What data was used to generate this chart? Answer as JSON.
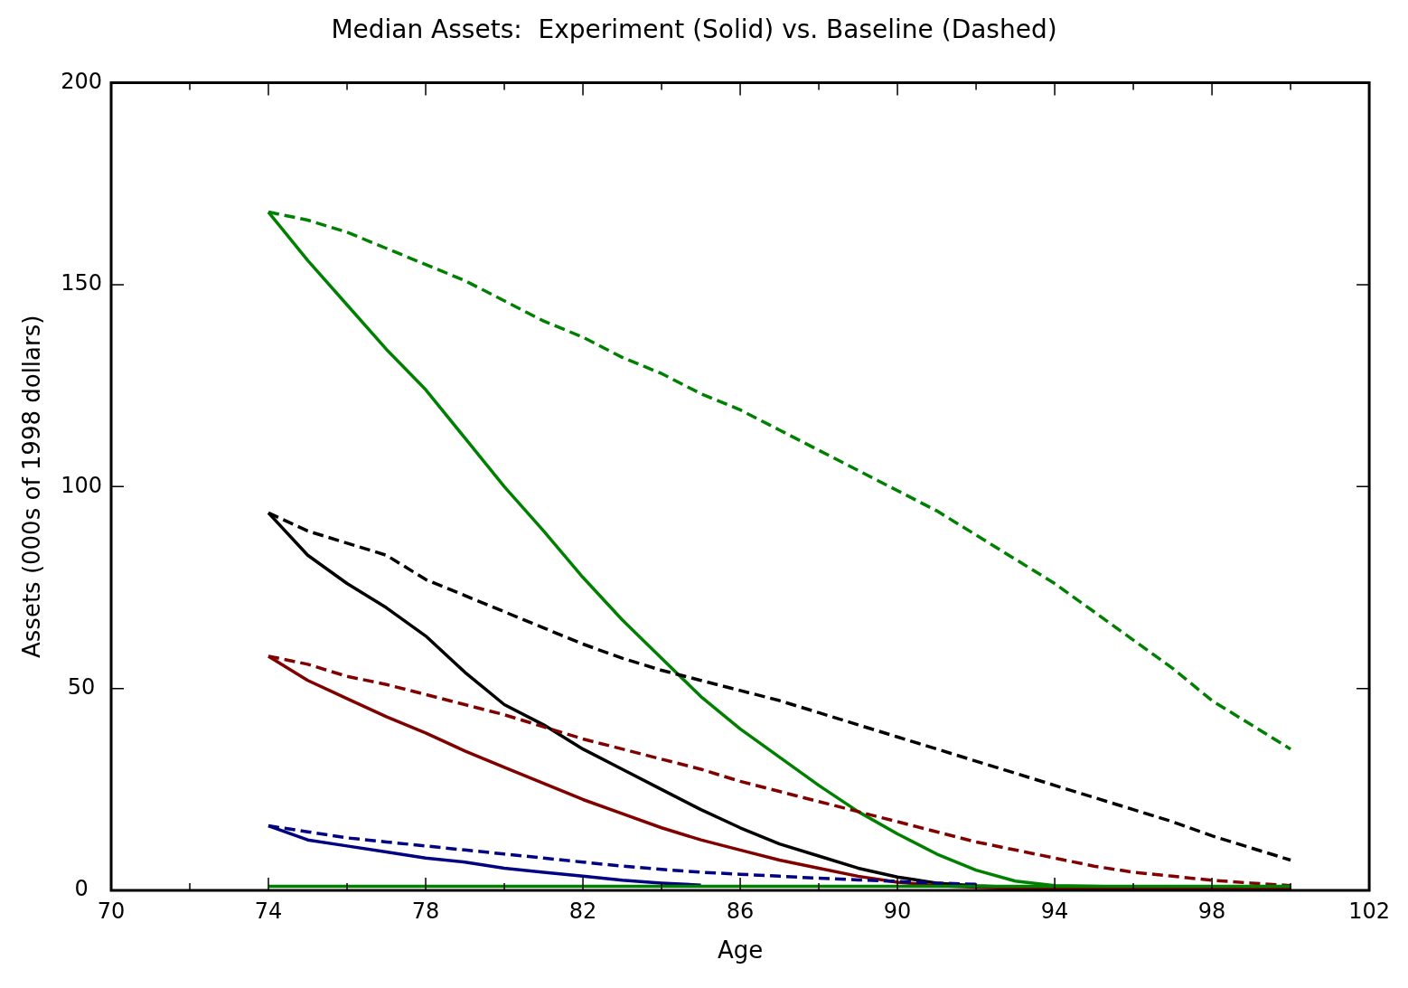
{
  "chart_data": {
    "type": "line",
    "title": "Median Assets:  Experiment (Solid) vs. Baseline (Dashed)",
    "xlabel": "Age",
    "ylabel": "Assets (000s of 1998 dollars)",
    "x": [
      74,
      75,
      76,
      77,
      78,
      79,
      80,
      81,
      82,
      83,
      84,
      85,
      86,
      87,
      88,
      89,
      90,
      91,
      92,
      93,
      94,
      95,
      96,
      97,
      98,
      99,
      100
    ],
    "series": [
      {
        "color": "#008000",
        "line_style": "dashed",
        "values": [
          168,
          166,
          163,
          159,
          155,
          151,
          146,
          141,
          137,
          132,
          128,
          123,
          119,
          114,
          109,
          104,
          99,
          94,
          88,
          82,
          76,
          69,
          62,
          55,
          47,
          41,
          35
        ]
      },
      {
        "color": "#008000",
        "line_style": "solid",
        "values": [
          168,
          156,
          145,
          134,
          124,
          112,
          100,
          89,
          77.5,
          67,
          57.5,
          48,
          40,
          33,
          26,
          19.5,
          14,
          9,
          5,
          2.3,
          1.2,
          1,
          0.8,
          0.7,
          0.6,
          0.5,
          0.5
        ]
      },
      {
        "color": "#000000",
        "line_style": "dashed",
        "values": [
          93.5,
          89,
          86,
          83,
          77,
          73,
          69,
          65,
          61,
          57.5,
          54.5,
          52,
          49.5,
          47,
          44,
          41,
          38,
          35,
          32,
          29,
          26,
          23,
          20,
          17,
          13.5,
          10.5,
          7.5
        ]
      },
      {
        "color": "#000000",
        "line_style": "solid",
        "values": [
          93.5,
          83,
          76,
          70,
          63,
          54,
          46,
          41,
          35,
          30,
          25,
          20,
          15.5,
          11.5,
          8.5,
          5.5,
          3.3,
          1.8,
          1.1,
          0.8,
          0.6,
          0.5,
          0.5,
          0.4,
          0.4,
          0.4,
          0.4
        ]
      },
      {
        "color": "#800000",
        "line_style": "dashed",
        "values": [
          58,
          56,
          53,
          51,
          48.5,
          46,
          43.5,
          40.5,
          37.5,
          35,
          32.5,
          30,
          27,
          24.5,
          22,
          19.5,
          17,
          14.5,
          12,
          10,
          8,
          6,
          4.5,
          3.5,
          2.5,
          1.8,
          1.2
        ]
      },
      {
        "color": "#800000",
        "line_style": "solid",
        "values": [
          58,
          52,
          47.5,
          43,
          39,
          34.5,
          30.5,
          26.5,
          22.5,
          19,
          15.5,
          12.5,
          10,
          7.5,
          5.5,
          3.5,
          2,
          1.2,
          0.8,
          0.5,
          0.4,
          0.3,
          0.3,
          0.3,
          0.3,
          0.3,
          0.3
        ]
      },
      {
        "color": "#000080",
        "line_style": "dashed",
        "values": [
          16,
          14.5,
          13,
          12,
          11,
          10,
          9,
          8,
          7,
          6,
          5.2,
          4.5,
          4,
          3.5,
          3,
          2.6,
          2.2,
          1.8,
          1.5,
          null,
          null,
          null,
          null,
          null,
          null,
          null,
          null
        ]
      },
      {
        "color": "#000080",
        "line_style": "solid",
        "values": [
          16,
          12.5,
          11,
          9.5,
          8,
          7,
          5.5,
          4.5,
          3.5,
          2.5,
          1.8,
          1.3,
          null,
          null,
          null,
          null,
          null,
          null,
          null,
          null,
          null,
          null,
          null,
          null,
          null,
          null,
          null
        ]
      },
      {
        "color": "#008000",
        "line_style": "solid",
        "values": [
          1,
          1,
          1,
          1,
          1,
          1,
          1,
          1,
          1,
          1,
          1,
          1,
          1,
          1,
          1,
          1,
          1,
          1,
          1,
          1,
          1,
          1,
          1,
          1,
          1,
          1,
          1
        ]
      }
    ],
    "xlim": [
      70,
      102
    ],
    "xticks": [
      70,
      {
        "value": 72,
        "label": null
      },
      74,
      {
        "value": 76,
        "label": null
      },
      78,
      {
        "value": 80,
        "label": null
      },
      82,
      {
        "value": 84,
        "label": null
      },
      86,
      {
        "value": 88,
        "label": null
      },
      90,
      {
        "value": 92,
        "label": null
      },
      94,
      {
        "value": 96,
        "label": null
      },
      98,
      {
        "value": 100,
        "label": null
      },
      102
    ],
    "ylim": [
      0,
      200
    ],
    "yticks": [
      0,
      50,
      100,
      150,
      200
    ],
    "grid": false,
    "legend": false,
    "marker": "none"
  }
}
